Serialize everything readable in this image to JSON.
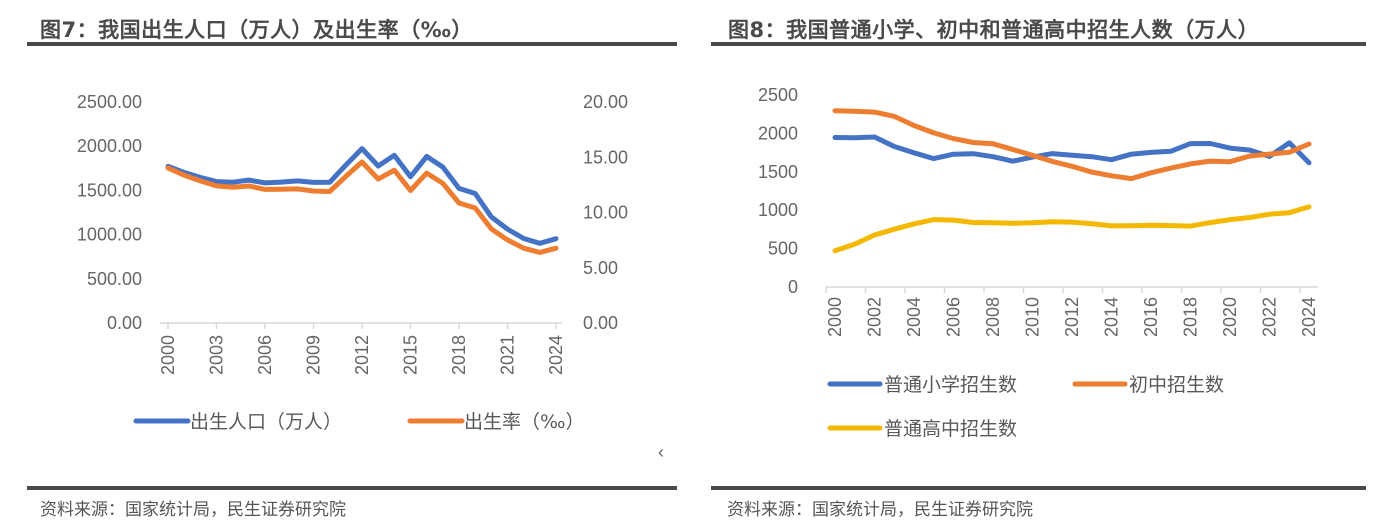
{
  "chart_data": [
    {
      "id": "fig7",
      "type": "line",
      "title": "图7：我国出生人口（万人）及出生率（‰）",
      "xlabel": "",
      "ylabel": "",
      "x": [
        2000,
        2001,
        2002,
        2003,
        2004,
        2005,
        2006,
        2007,
        2008,
        2009,
        2010,
        2011,
        2012,
        2013,
        2014,
        2015,
        2016,
        2017,
        2018,
        2019,
        2020,
        2021,
        2022,
        2023,
        2024
      ],
      "x_tick_labels": [
        "2000",
        "2003",
        "2006",
        "2009",
        "2012",
        "2015",
        "2018",
        "2021",
        "2024"
      ],
      "y_left": {
        "range": [
          0,
          2500
        ],
        "ticks": [
          "0.00",
          "500.00",
          "1000.00",
          "1500.00",
          "2000.00",
          "2500.00"
        ]
      },
      "y_right": {
        "range": [
          0,
          20
        ],
        "ticks": [
          "0.00",
          "5.00",
          "10.00",
          "15.00",
          "20.00"
        ]
      },
      "grid": false,
      "legend_position": "bottom",
      "series": [
        {
          "name": "出生人口（万人）",
          "axis": "left",
          "color": "#4472C4",
          "values": [
            1771,
            1702,
            1647,
            1599,
            1593,
            1617,
            1585,
            1594,
            1608,
            1591,
            1592,
            1786,
            1973,
            1776,
            1897,
            1655,
            1883,
            1765,
            1523,
            1465,
            1200,
            1062,
            956,
            902,
            954
          ]
        },
        {
          "name": "出生率（‰）",
          "axis": "right",
          "color": "#ED7D31",
          "values": [
            14.03,
            13.38,
            12.86,
            12.41,
            12.29,
            12.4,
            12.09,
            12.1,
            12.14,
            11.95,
            11.9,
            13.27,
            14.57,
            13.03,
            13.83,
            11.99,
            13.57,
            12.64,
            10.86,
            10.41,
            8.52,
            7.52,
            6.77,
            6.39,
            6.77
          ]
        }
      ],
      "source": "资料来源：国家统计局，民生证券研究院",
      "stray_mark": "‹"
    },
    {
      "id": "fig8",
      "type": "line",
      "title": "图8：我国普通小学、初中和普通高中招生人数（万人）",
      "xlabel": "",
      "ylabel": "",
      "x": [
        2000,
        2001,
        2002,
        2003,
        2004,
        2005,
        2006,
        2007,
        2008,
        2009,
        2010,
        2011,
        2012,
        2013,
        2014,
        2015,
        2016,
        2017,
        2018,
        2019,
        2020,
        2021,
        2022,
        2023,
        2024
      ],
      "x_tick_labels": [
        "2000",
        "2002",
        "2004",
        "2006",
        "2008",
        "2010",
        "2012",
        "2014",
        "2016",
        "2018",
        "2020",
        "2022",
        "2024"
      ],
      "y": {
        "range": [
          0,
          2500
        ],
        "ticks": [
          "0",
          "500",
          "1000",
          "1500",
          "2000",
          "2500"
        ]
      },
      "grid": false,
      "legend_position": "bottom",
      "series": [
        {
          "name": "普通小学招生数",
          "color": "#4472C4",
          "values": [
            1946,
            1944,
            1953,
            1829,
            1747,
            1672,
            1729,
            1736,
            1696,
            1638,
            1692,
            1737,
            1715,
            1696,
            1658,
            1729,
            1752,
            1767,
            1867,
            1869,
            1808,
            1782,
            1701,
            1878,
            1617
          ]
        },
        {
          "name": "初中招生数",
          "color": "#ED7D31",
          "values": [
            2296,
            2288,
            2277,
            2221,
            2103,
            2007,
            1932,
            1882,
            1864,
            1790,
            1715,
            1635,
            1571,
            1496,
            1448,
            1412,
            1487,
            1548,
            1603,
            1639,
            1632,
            1706,
            1731,
            1754,
            1862
          ]
        },
        {
          "name": "普通高中招生数",
          "color": "#F5B800",
          "values": [
            473,
            558,
            677,
            752,
            822,
            878,
            871,
            840,
            837,
            830,
            836,
            850,
            845,
            823,
            796,
            797,
            803,
            800,
            793,
            839,
            877,
            905,
            948,
            967,
            1043
          ]
        }
      ],
      "source": "资料来源：国家统计局，民生证券研究院"
    }
  ]
}
